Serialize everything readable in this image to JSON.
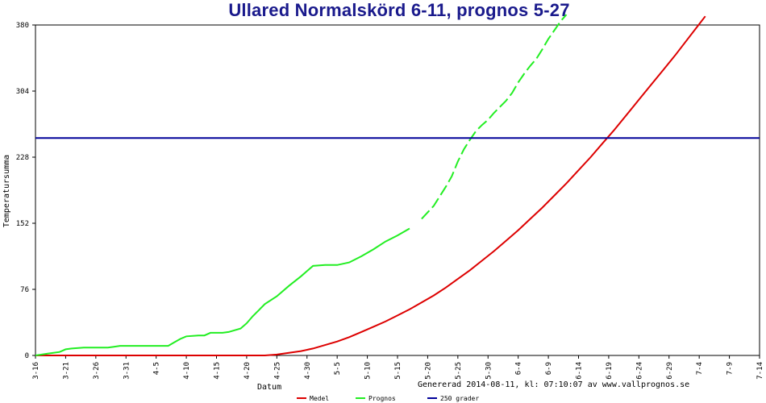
{
  "chart_data": {
    "type": "line",
    "title": "Ullared Normalskörd 6-11, prognos 5-27",
    "xlabel": "Datum",
    "ylabel": "Temperatursumma",
    "footer": "Genererad 2014-08-11, kl: 07:10:07 av www.vallprognos.se",
    "ylim": [
      0,
      380
    ],
    "yticks": [
      0,
      76,
      152,
      228,
      304,
      380
    ],
    "x_tick_labels": [
      "3-16",
      "3-21",
      "3-26",
      "3-31",
      "4-5",
      "4-10",
      "4-15",
      "4-20",
      "4-25",
      "4-30",
      "5-5",
      "5-10",
      "5-15",
      "5-20",
      "5-25",
      "5-30",
      "6-4",
      "6-9",
      "6-14",
      "6-19",
      "6-24",
      "6-29",
      "7-4",
      "7-9",
      "7-14"
    ],
    "x_unit": "days since 3-16",
    "xlim": [
      0,
      120
    ],
    "series": [
      {
        "name": "Medel",
        "color": "#dd0000",
        "style": "solid",
        "points": [
          [
            0,
            0
          ],
          [
            5,
            0
          ],
          [
            10,
            0
          ],
          [
            15,
            0
          ],
          [
            20,
            0
          ],
          [
            25,
            0
          ],
          [
            30,
            0
          ],
          [
            35,
            0
          ],
          [
            38,
            0
          ],
          [
            40,
            1
          ],
          [
            42,
            3
          ],
          [
            44,
            5
          ],
          [
            46,
            8
          ],
          [
            48,
            12
          ],
          [
            50,
            16
          ],
          [
            52,
            21
          ],
          [
            54,
            27
          ],
          [
            56,
            33
          ],
          [
            58,
            39
          ],
          [
            60,
            46
          ],
          [
            62,
            53
          ],
          [
            64,
            61
          ],
          [
            66,
            69
          ],
          [
            68,
            78
          ],
          [
            70,
            88
          ],
          [
            72,
            98
          ],
          [
            74,
            109
          ],
          [
            76,
            120
          ],
          [
            78,
            132
          ],
          [
            80,
            144
          ],
          [
            82,
            157
          ],
          [
            84,
            170
          ],
          [
            86,
            184
          ],
          [
            88,
            198
          ],
          [
            90,
            213
          ],
          [
            92,
            228
          ],
          [
            94,
            244
          ],
          [
            96,
            260
          ],
          [
            98,
            277
          ],
          [
            100,
            294
          ],
          [
            102,
            311
          ],
          [
            104,
            328
          ],
          [
            106,
            345
          ],
          [
            108,
            363
          ],
          [
            110,
            381
          ],
          [
            111,
            390
          ]
        ]
      },
      {
        "name": "Prognos",
        "color": "#22ee22",
        "style": "mixed",
        "observed_until": 63,
        "points": [
          [
            0,
            0
          ],
          [
            2,
            2
          ],
          [
            4,
            4
          ],
          [
            5,
            7
          ],
          [
            6,
            8
          ],
          [
            8,
            9
          ],
          [
            10,
            9
          ],
          [
            12,
            9
          ],
          [
            13,
            10
          ],
          [
            14,
            11
          ],
          [
            16,
            11
          ],
          [
            18,
            11
          ],
          [
            20,
            11
          ],
          [
            22,
            11
          ],
          [
            23,
            15
          ],
          [
            24,
            19
          ],
          [
            25,
            22
          ],
          [
            27,
            23
          ],
          [
            28,
            23
          ],
          [
            29,
            26
          ],
          [
            31,
            26
          ],
          [
            32,
            27
          ],
          [
            34,
            31
          ],
          [
            35,
            37
          ],
          [
            36,
            45
          ],
          [
            37,
            52
          ],
          [
            38,
            59
          ],
          [
            40,
            68
          ],
          [
            42,
            80
          ],
          [
            44,
            91
          ],
          [
            45,
            97
          ],
          [
            46,
            103
          ],
          [
            48,
            104
          ],
          [
            50,
            104
          ],
          [
            52,
            107
          ],
          [
            54,
            114
          ],
          [
            56,
            122
          ],
          [
            58,
            131
          ],
          [
            60,
            138
          ],
          [
            62,
            146
          ],
          [
            64,
            157
          ],
          [
            66,
            172
          ],
          [
            68,
            194
          ],
          [
            69,
            206
          ],
          [
            70,
            223
          ],
          [
            71,
            237
          ],
          [
            72,
            248
          ],
          [
            73,
            258
          ],
          [
            74,
            265
          ],
          [
            75,
            271
          ],
          [
            76,
            279
          ],
          [
            77,
            286
          ],
          [
            78,
            293
          ],
          [
            79,
            302
          ],
          [
            80,
            314
          ],
          [
            81,
            324
          ],
          [
            82,
            333
          ],
          [
            83,
            341
          ],
          [
            84,
            352
          ],
          [
            85,
            364
          ],
          [
            86,
            374
          ],
          [
            87,
            384
          ],
          [
            88,
            392
          ]
        ]
      },
      {
        "name": "250 grader",
        "color": "#000099",
        "style": "solid",
        "points": [
          [
            0,
            250
          ],
          [
            120,
            250
          ]
        ]
      }
    ],
    "legend": [
      {
        "name": "Medel",
        "color": "#dd0000"
      },
      {
        "name": "Prognos",
        "color": "#22ee22"
      },
      {
        "name": "250 grader",
        "color": "#000099"
      }
    ],
    "legend_position": "bottom",
    "grid": false
  }
}
